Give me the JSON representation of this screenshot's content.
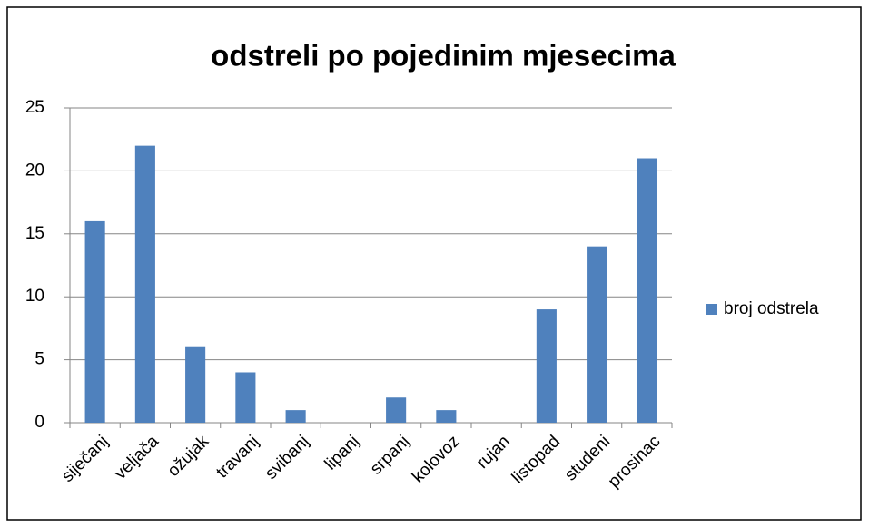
{
  "chart_data": {
    "type": "bar",
    "title": "odstreli po pojedinim mjesecima",
    "categories": [
      "siječanj",
      "veljača",
      "ožujak",
      "travanj",
      "svibanj",
      "lipanj",
      "srpanj",
      "kolovoz",
      "rujan",
      "listopad",
      "studeni",
      "prosinac"
    ],
    "series": [
      {
        "name": "broj odstrela",
        "color": "#4f81bd",
        "values": [
          16,
          22,
          6,
          4,
          1,
          0,
          2,
          1,
          0,
          9,
          14,
          21
        ]
      }
    ],
    "ylim": [
      0,
      25
    ],
    "yticks": [
      0,
      5,
      10,
      15,
      20,
      25
    ],
    "grid": true,
    "legend": "right"
  }
}
